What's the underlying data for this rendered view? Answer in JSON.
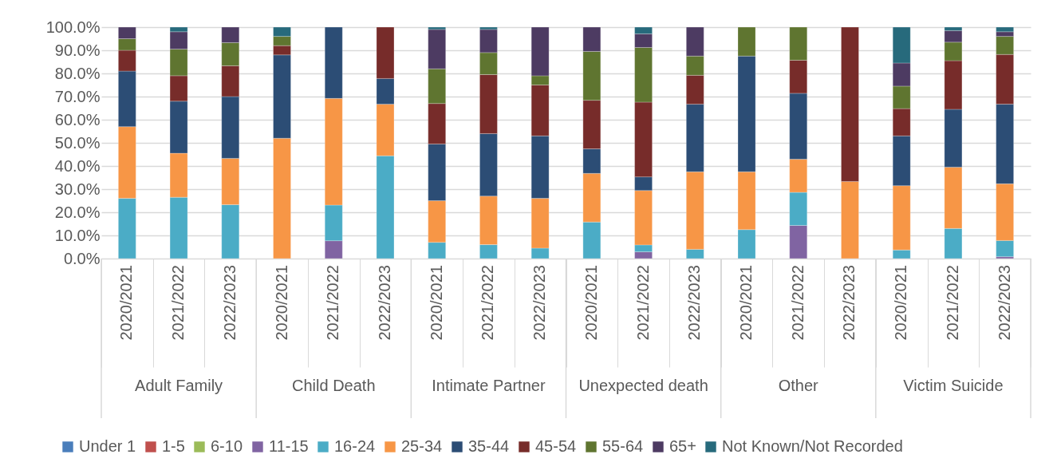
{
  "chart_data": {
    "type": "bar",
    "stacked": true,
    "categories": [
      "2020/2021",
      "2021/2022",
      "2022/2023",
      "2020/2021",
      "2021/2022",
      "2022/2023",
      "2020/2021",
      "2021/2022",
      "2022/2023",
      "2020/2021",
      "2021/2022",
      "2022/2023",
      "2020/2021",
      "2021/2022",
      "2022/2023",
      "2020/2021",
      "2021/2022",
      "2022/2023"
    ],
    "annotations": [
      "Adult Family",
      "Child Death",
      "Intimate Partner",
      "Unexpected death",
      "Other",
      "Victim Suicide"
    ],
    "ylim": [
      0,
      100
    ],
    "yticks": [
      {
        "value": 0,
        "label": "0.0%"
      },
      {
        "value": 10,
        "label": "10.0%"
      },
      {
        "value": 20,
        "label": "20.0%"
      },
      {
        "value": 30,
        "label": "30.0%"
      },
      {
        "value": 40,
        "label": "40.0%"
      },
      {
        "value": 50,
        "label": "50.0%"
      },
      {
        "value": 60,
        "label": "60.0%"
      },
      {
        "value": 70,
        "label": "70.0%"
      },
      {
        "value": 80,
        "label": "80.0%"
      },
      {
        "value": 90,
        "label": "90.0%"
      },
      {
        "value": 100,
        "label": "100.0%"
      }
    ],
    "grid": "y",
    "legend": "bottom",
    "series": [
      {
        "name": "Under 1",
        "color": "#4a7ebb",
        "values": [
          null,
          null,
          null,
          null,
          null,
          null,
          null,
          null,
          null,
          null,
          null,
          null,
          null,
          null,
          null,
          null,
          null,
          null
        ]
      },
      {
        "name": "1-5",
        "color": "#c0504d",
        "values": [
          null,
          null,
          null,
          null,
          null,
          null,
          null,
          null,
          null,
          null,
          null,
          null,
          null,
          null,
          null,
          null,
          null,
          null
        ]
      },
      {
        "name": "6-10",
        "color": "#9bbb59",
        "values": [
          null,
          null,
          null,
          null,
          null,
          null,
          null,
          null,
          null,
          null,
          null,
          null,
          null,
          null,
          null,
          null,
          null,
          null
        ]
      },
      {
        "name": "11-15",
        "color": "#8064a2",
        "values": [
          null,
          null,
          null,
          null,
          7.7,
          null,
          null,
          null,
          null,
          null,
          2.9,
          null,
          null,
          14.3,
          null,
          null,
          null,
          0.8
        ]
      },
      {
        "name": "16-24",
        "color": "#4bacc6",
        "values": [
          26,
          26.5,
          23.3,
          null,
          15.4,
          44.4,
          7,
          6,
          4.5,
          15.8,
          3,
          4,
          12.5,
          14.3,
          null,
          3.7,
          13,
          7
        ]
      },
      {
        "name": "25-34",
        "color": "#f79646",
        "values": [
          31,
          19,
          20,
          52,
          46.1,
          22.3,
          18,
          21,
          21.5,
          21,
          23.5,
          33.5,
          25,
          14.3,
          33.3,
          27.8,
          26.5,
          24.5
        ]
      },
      {
        "name": "35-44",
        "color": "#2c4d75",
        "values": [
          24,
          22.5,
          26.7,
          36,
          30.8,
          11.1,
          24.5,
          27,
          27,
          10.6,
          5.9,
          29.2,
          50,
          28.5,
          null,
          21.5,
          25,
          34.4
        ]
      },
      {
        "name": "45-54",
        "color": "#772c2a",
        "values": [
          9,
          11,
          13.3,
          4,
          null,
          22.2,
          17.5,
          25.5,
          22,
          21,
          32.3,
          12.5,
          null,
          14.3,
          66.7,
          11.8,
          21,
          21.5
        ]
      },
      {
        "name": "55-64",
        "color": "#5f7530",
        "values": [
          5,
          11.5,
          10,
          4,
          null,
          null,
          15,
          9.5,
          4,
          21.1,
          23.6,
          8.3,
          12.5,
          14.3,
          null,
          9.7,
          8,
          7.8
        ]
      },
      {
        "name": "65+",
        "color": "#4d3b62",
        "values": [
          5,
          7.5,
          6.7,
          null,
          null,
          null,
          17,
          10,
          21,
          10.5,
          5.9,
          12.5,
          null,
          null,
          null,
          10,
          5,
          2
        ]
      },
      {
        "name": "Not Known/Not Recorded",
        "color": "#276a7c",
        "values": [
          null,
          2,
          null,
          4,
          null,
          null,
          1,
          1,
          null,
          null,
          2.9,
          null,
          null,
          null,
          null,
          15.5,
          1.5,
          2
        ]
      }
    ]
  }
}
